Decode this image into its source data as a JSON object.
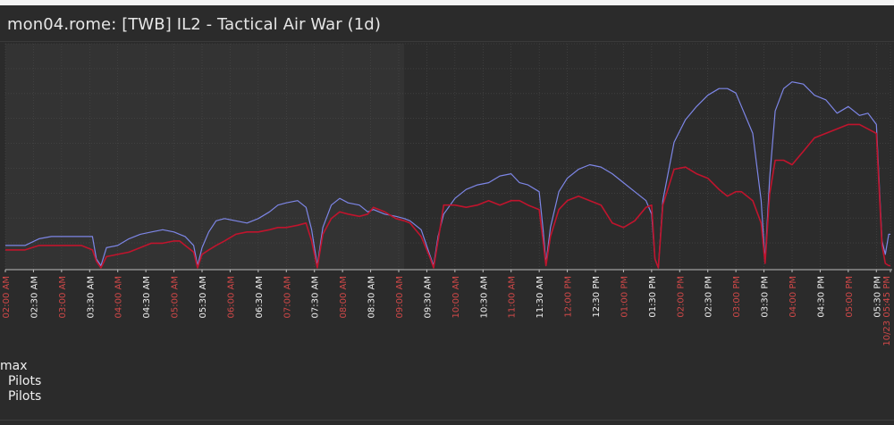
{
  "window": {
    "title": "mon04.rome: [TWB] IL2 - Tactical Air War (1d)"
  },
  "legend": {
    "label_max": "max",
    "label_pilots_1": "Pilots",
    "label_pilots_2": "Pilots"
  },
  "colors": {
    "background": "#2b2b2b",
    "plot_left": "#333333",
    "plot_right": "#2c2c2c",
    "grid": "#4a4a4a",
    "series_max": "#7d86e6",
    "series_pilots": "#c0142d",
    "tick_red": "#d04848",
    "tick_white": "#eeeeee"
  },
  "chart_data": {
    "type": "line",
    "title": "mon04.rome: [TWB] IL2 - Tactical Air War (1d)",
    "xlabel": "",
    "ylabel": "",
    "grid": true,
    "legend_placement": "bottom-left",
    "x_range": [
      0,
      15.75
    ],
    "ylim": [
      0,
      100
    ],
    "x_units": "hours since 02:00 AM",
    "x_ticks": [
      {
        "x": 0.0,
        "label": "02:00 AM",
        "highlight": true
      },
      {
        "x": 0.5,
        "label": "02:30 AM",
        "highlight": false
      },
      {
        "x": 1.0,
        "label": "03:00 AM",
        "highlight": true
      },
      {
        "x": 1.5,
        "label": "03:30 AM",
        "highlight": false
      },
      {
        "x": 2.0,
        "label": "04:00 AM",
        "highlight": true
      },
      {
        "x": 2.5,
        "label": "04:30 AM",
        "highlight": false
      },
      {
        "x": 3.0,
        "label": "05:00 AM",
        "highlight": true
      },
      {
        "x": 3.5,
        "label": "05:30 AM",
        "highlight": false
      },
      {
        "x": 4.0,
        "label": "06:00 AM",
        "highlight": true
      },
      {
        "x": 4.5,
        "label": "06:30 AM",
        "highlight": false
      },
      {
        "x": 5.0,
        "label": "07:00 AM",
        "highlight": true
      },
      {
        "x": 5.5,
        "label": "07:30 AM",
        "highlight": false
      },
      {
        "x": 6.0,
        "label": "08:00 AM",
        "highlight": true
      },
      {
        "x": 6.5,
        "label": "08:30 AM",
        "highlight": false
      },
      {
        "x": 7.0,
        "label": "09:00 AM",
        "highlight": true
      },
      {
        "x": 7.5,
        "label": "09:30 AM",
        "highlight": false
      },
      {
        "x": 8.0,
        "label": "10:00 AM",
        "highlight": true
      },
      {
        "x": 8.5,
        "label": "10:30 AM",
        "highlight": false
      },
      {
        "x": 9.0,
        "label": "11:00 AM",
        "highlight": true
      },
      {
        "x": 9.5,
        "label": "11:30 AM",
        "highlight": false
      },
      {
        "x": 10.0,
        "label": "12:00 PM",
        "highlight": true
      },
      {
        "x": 10.5,
        "label": "12:30 PM",
        "highlight": false
      },
      {
        "x": 11.0,
        "label": "01:00 PM",
        "highlight": true
      },
      {
        "x": 11.5,
        "label": "01:30 PM",
        "highlight": false
      },
      {
        "x": 12.0,
        "label": "02:00 PM",
        "highlight": true
      },
      {
        "x": 12.5,
        "label": "02:30 PM",
        "highlight": false
      },
      {
        "x": 13.0,
        "label": "03:00 PM",
        "highlight": true
      },
      {
        "x": 13.5,
        "label": "03:30 PM",
        "highlight": false
      },
      {
        "x": 14.0,
        "label": "04:00 PM",
        "highlight": true
      },
      {
        "x": 14.5,
        "label": "04:30 PM",
        "highlight": false
      },
      {
        "x": 15.0,
        "label": "05:00 PM",
        "highlight": true
      },
      {
        "x": 15.5,
        "label": "05:30 PM",
        "highlight": false
      },
      {
        "x": 15.75,
        "label": "10/23 05:45 PM",
        "highlight": true
      }
    ],
    "series": [
      {
        "name": "max",
        "x": [
          0,
          0.35,
          0.6,
          0.82,
          0.95,
          1.1,
          1.35,
          1.55,
          1.62,
          1.7,
          1.8,
          2.0,
          2.2,
          2.4,
          2.6,
          2.8,
          3.0,
          3.1,
          3.2,
          3.35,
          3.42,
          3.5,
          3.62,
          3.75,
          3.9,
          4.1,
          4.3,
          4.5,
          4.7,
          4.85,
          5.0,
          5.2,
          5.35,
          5.45,
          5.55,
          5.65,
          5.8,
          5.95,
          6.1,
          6.3,
          6.45,
          6.55,
          6.75,
          6.95,
          7.1,
          7.2,
          7.4,
          7.55,
          7.62,
          7.7,
          7.8,
          8.0,
          8.2,
          8.4,
          8.6,
          8.8,
          9.0,
          9.15,
          9.3,
          9.5,
          9.57,
          9.62,
          9.7,
          9.85,
          10.0,
          10.2,
          10.4,
          10.6,
          10.8,
          11.0,
          11.2,
          11.4,
          11.5,
          11.56,
          11.62,
          11.7,
          11.9,
          12.1,
          12.3,
          12.5,
          12.7,
          12.85,
          13.0,
          13.1,
          13.3,
          13.45,
          13.52,
          13.6,
          13.7,
          13.85,
          14.0,
          14.2,
          14.4,
          14.6,
          14.8,
          15.0,
          15.2,
          15.35,
          15.5,
          15.6,
          15.66,
          15.72,
          15.75
        ],
        "values": [
          10,
          10,
          13,
          14,
          14,
          14,
          14,
          14,
          4,
          1,
          9,
          10,
          13,
          15,
          16,
          17,
          16,
          15,
          14,
          10,
          1,
          9,
          16,
          21,
          22,
          21,
          20,
          22,
          25,
          28,
          29,
          30,
          27,
          17,
          1,
          18,
          28,
          31,
          29,
          28,
          25,
          26,
          24,
          23,
          22,
          21,
          17,
          6,
          1,
          14,
          24,
          31,
          35,
          37,
          38,
          41,
          42,
          38,
          37,
          34,
          17,
          2,
          18,
          34,
          40,
          44,
          46,
          45,
          42,
          38,
          34,
          30,
          24,
          4,
          0,
          30,
          56,
          66,
          72,
          77,
          80,
          80,
          78,
          72,
          60,
          30,
          3,
          40,
          70,
          80,
          83,
          82,
          77,
          75,
          69,
          72,
          68,
          69,
          64,
          12,
          6,
          15,
          15
        ]
      },
      {
        "name": "Pilots",
        "x": [
          0,
          0.35,
          0.6,
          0.82,
          0.95,
          1.1,
          1.35,
          1.55,
          1.62,
          1.7,
          1.8,
          2.0,
          2.2,
          2.4,
          2.6,
          2.8,
          3.0,
          3.1,
          3.2,
          3.35,
          3.42,
          3.5,
          3.62,
          3.75,
          3.9,
          4.1,
          4.3,
          4.5,
          4.7,
          4.85,
          5.0,
          5.2,
          5.35,
          5.45,
          5.55,
          5.65,
          5.8,
          5.95,
          6.1,
          6.3,
          6.45,
          6.55,
          6.75,
          6.95,
          7.1,
          7.2,
          7.4,
          7.55,
          7.62,
          7.7,
          7.8,
          8.0,
          8.2,
          8.4,
          8.6,
          8.8,
          9.0,
          9.15,
          9.3,
          9.5,
          9.57,
          9.62,
          9.7,
          9.85,
          10.0,
          10.2,
          10.4,
          10.6,
          10.8,
          11.0,
          11.2,
          11.4,
          11.5,
          11.56,
          11.62,
          11.7,
          11.9,
          12.1,
          12.3,
          12.5,
          12.7,
          12.85,
          13.0,
          13.1,
          13.3,
          13.45,
          13.52,
          13.6,
          13.7,
          13.85,
          14.0,
          14.2,
          14.4,
          14.6,
          14.8,
          15.0,
          15.2,
          15.35,
          15.5,
          15.6,
          15.66,
          15.72,
          15.75
        ],
        "values": [
          8,
          8,
          10,
          10,
          10,
          10,
          10,
          8,
          3,
          0,
          5,
          6,
          7,
          9,
          11,
          11,
          12,
          12,
          10,
          7,
          0,
          6,
          8,
          10,
          12,
          15,
          16,
          16,
          17,
          18,
          18,
          19,
          20,
          12,
          0,
          15,
          22,
          25,
          24,
          23,
          24,
          27,
          25,
          22,
          21,
          20,
          14,
          5,
          0,
          12,
          28,
          28,
          27,
          28,
          30,
          28,
          30,
          30,
          28,
          26,
          12,
          1,
          14,
          26,
          30,
          32,
          30,
          28,
          20,
          18,
          21,
          27,
          28,
          4,
          0,
          28,
          44,
          45,
          42,
          40,
          35,
          32,
          34,
          34,
          30,
          20,
          2,
          33,
          48,
          48,
          46,
          52,
          58,
          60,
          62,
          64,
          64,
          62,
          60,
          10,
          2,
          1,
          1
        ]
      }
    ]
  }
}
